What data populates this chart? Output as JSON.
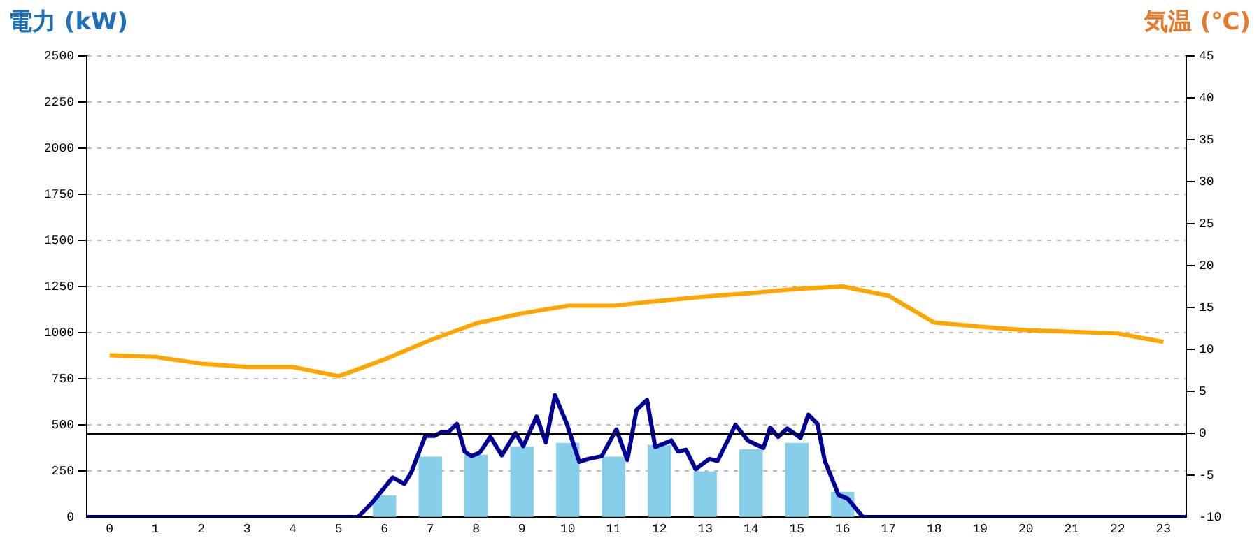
{
  "chart_data": {
    "type": "bar",
    "ylabel": "電力 (kW)",
    "y2label": "気温 (℃)",
    "x": [
      0,
      1,
      2,
      3,
      4,
      5,
      6,
      7,
      8,
      9,
      10,
      11,
      12,
      13,
      14,
      15,
      16,
      17,
      18,
      19,
      20,
      21,
      22,
      23
    ],
    "xlim": [
      -0.5,
      23.5
    ],
    "xticks": [
      0,
      1,
      2,
      3,
      4,
      5,
      6,
      7,
      8,
      9,
      10,
      11,
      12,
      13,
      14,
      15,
      16,
      17,
      18,
      19,
      20,
      21,
      22,
      23
    ],
    "ylim": [
      0,
      2500
    ],
    "yticks": [
      0,
      250,
      500,
      750,
      1000,
      1250,
      1500,
      1750,
      2000,
      2250,
      2500
    ],
    "y2lim": [
      -10,
      45
    ],
    "y2ticks": [
      -10,
      -5,
      0,
      5,
      10,
      15,
      20,
      25,
      30,
      35,
      40,
      45
    ],
    "grid": "y",
    "marker": "none",
    "series": [
      {
        "type": "bar",
        "color": "#87ceeb",
        "values": [
          0,
          0,
          0,
          0,
          0,
          0,
          115,
          325,
          335,
          380,
          400,
          325,
          390,
          245,
          365,
          400,
          135,
          0,
          0,
          0,
          0,
          0,
          0,
          0
        ]
      },
      {
        "type": "line",
        "axis": "y2",
        "color": "#ffa500",
        "values": [
          9.3,
          9.1,
          8.3,
          7.9,
          7.9,
          6.8,
          8.8,
          11.1,
          13.1,
          14.3,
          15.2,
          15.2,
          15.8,
          16.3,
          16.7,
          17.2,
          17.5,
          16.4,
          13.2,
          12.7,
          12.3,
          12.1,
          11.9,
          10.9
        ]
      },
      {
        "type": "line",
        "color": "#000099",
        "x": [
          -0.5,
          5.42,
          5.72,
          6.18,
          6.43,
          6.58,
          6.89,
          7.09,
          7.24,
          7.39,
          7.58,
          7.75,
          7.9,
          8.08,
          8.31,
          8.56,
          8.86,
          9.03,
          9.32,
          9.52,
          9.72,
          9.98,
          10.25,
          10.44,
          10.74,
          11.06,
          11.3,
          11.5,
          11.73,
          11.91,
          12.26,
          12.41,
          12.58,
          12.79,
          13.09,
          13.27,
          13.66,
          13.93,
          14.27,
          14.42,
          14.59,
          14.79,
          15.08,
          15.25,
          15.45,
          15.61,
          15.91,
          16.11,
          16.44,
          23.5
        ],
        "values": [
          0,
          0,
          75,
          215,
          180,
          240,
          440,
          440,
          460,
          460,
          505,
          355,
          330,
          350,
          435,
          335,
          455,
          385,
          545,
          405,
          660,
          505,
          300,
          315,
          330,
          475,
          310,
          580,
          635,
          380,
          415,
          355,
          365,
          260,
          315,
          305,
          500,
          415,
          375,
          485,
          435,
          480,
          430,
          555,
          505,
          305,
          120,
          100,
          0,
          0
        ]
      }
    ],
    "ref_lines": [
      {
        "axis": "y2",
        "value": 0,
        "color": "#000000"
      }
    ]
  }
}
